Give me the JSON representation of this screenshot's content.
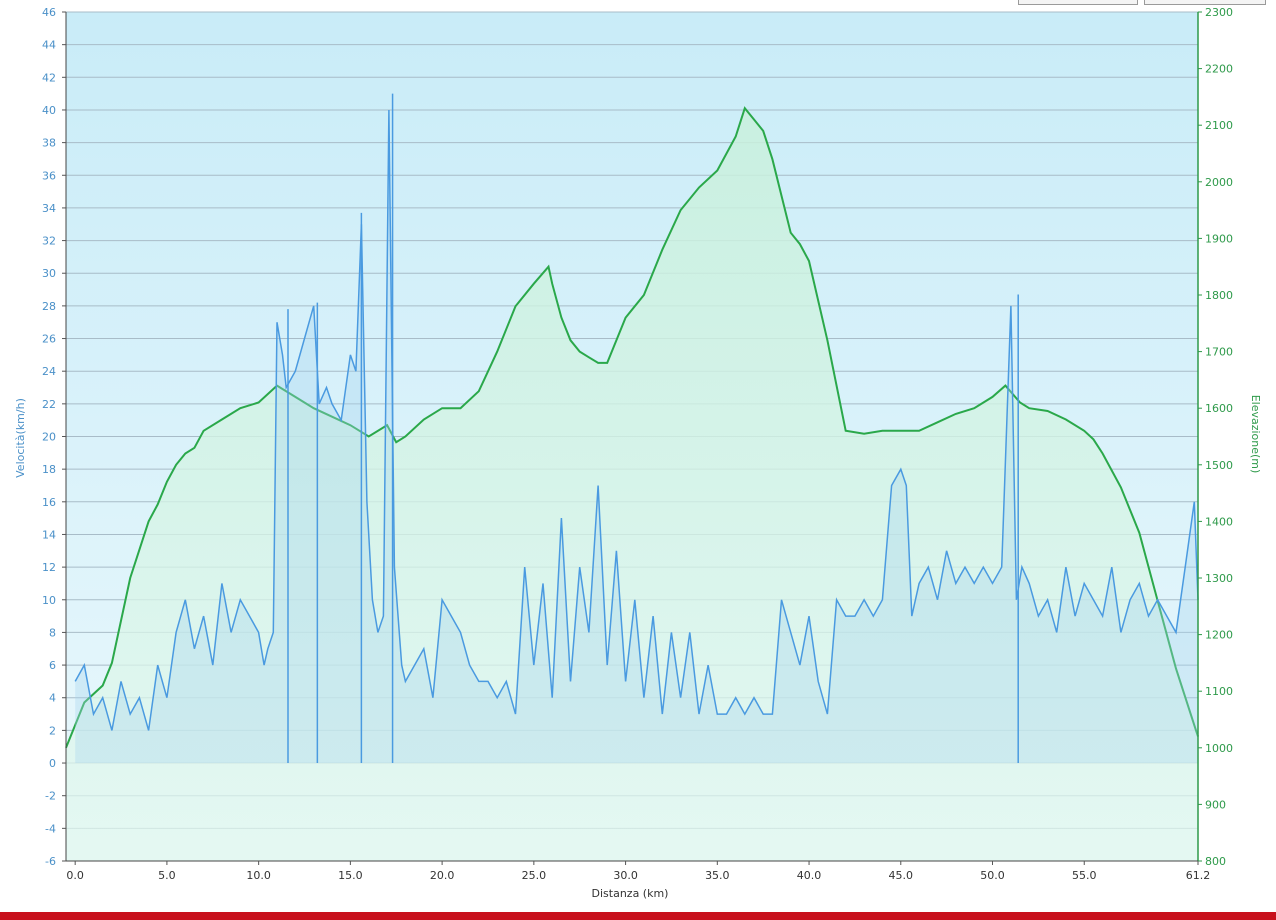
{
  "chart_data": {
    "type": "area",
    "xlabel": "Distanza  (km)",
    "ylabel_left": "Velocità(km/h)",
    "ylabel_right": "Elevazione(m)",
    "xlim": [
      -0.5,
      61.2
    ],
    "ylim_left": [
      -6,
      46
    ],
    "ylim_right": [
      800,
      2300
    ],
    "x_ticks": [
      "0.0",
      "5.0",
      "10.0",
      "15.0",
      "20.0",
      "25.0",
      "30.0",
      "35.0",
      "40.0",
      "45.0",
      "50.0",
      "55.0",
      "61.2"
    ],
    "x_tick_values": [
      0,
      5,
      10,
      15,
      20,
      25,
      30,
      35,
      40,
      45,
      50,
      55,
      61.2
    ],
    "y_left_ticks": [
      "46",
      "44",
      "42",
      "40",
      "38",
      "36",
      "34",
      "32",
      "30",
      "28",
      "26",
      "24",
      "22",
      "20",
      "18",
      "16",
      "14",
      "12",
      "10",
      "8",
      "6",
      "4",
      "2",
      "0",
      "-2",
      "-4",
      "-6"
    ],
    "y_right_ticks": [
      "2300",
      "2200",
      "2100",
      "2000",
      "1900",
      "1800",
      "1700",
      "1600",
      "1500",
      "1400",
      "1300",
      "1200",
      "1100",
      "1000",
      "900",
      "800"
    ],
    "grid": true,
    "series": [
      {
        "name": "Velocità(km/h)",
        "axis": "left",
        "color": "#4a9ae0",
        "x": [
          0,
          0.5,
          1,
          1.5,
          2,
          2.5,
          3,
          3.5,
          4,
          4.5,
          5,
          5.5,
          6,
          6.5,
          7,
          7.5,
          8,
          8.5,
          9,
          9.5,
          10,
          10.3,
          10.5,
          10.8,
          11,
          11.3,
          11.5,
          12,
          12.5,
          13,
          13.3,
          13.7,
          14,
          14.5,
          15,
          15.3,
          15.6,
          15.9,
          16.2,
          16.5,
          16.8,
          17.1,
          17.4,
          17.8,
          18,
          18.5,
          19,
          19.5,
          20,
          20.5,
          21,
          21.5,
          22,
          22.5,
          23,
          23.5,
          24,
          24.5,
          25,
          25.5,
          26,
          26.5,
          27,
          27.5,
          28,
          28.5,
          29,
          29.5,
          30,
          30.5,
          31,
          31.5,
          32,
          32.5,
          33,
          33.5,
          34,
          34.5,
          35,
          35.5,
          36,
          36.5,
          37,
          37.5,
          38,
          38.5,
          39,
          39.5,
          40,
          40.5,
          41,
          41.5,
          42,
          42.5,
          43,
          43.5,
          44,
          44.5,
          45,
          45.3,
          45.6,
          46,
          46.5,
          47,
          47.5,
          48,
          48.5,
          49,
          49.5,
          50,
          50.5,
          51,
          51.3,
          51.6,
          52,
          52.5,
          53,
          53.5,
          54,
          54.5,
          55,
          55.5,
          56,
          56.5,
          57,
          57.5,
          58,
          58.5,
          59,
          59.5,
          60,
          60.5,
          61,
          61.2
        ],
        "values": [
          5,
          6,
          3,
          4,
          2,
          5,
          3,
          4,
          2,
          6,
          4,
          8,
          10,
          7,
          9,
          6,
          11,
          8,
          10,
          9,
          8,
          6,
          7,
          8,
          27,
          25,
          23,
          24,
          26,
          28,
          22,
          23,
          22,
          21,
          25,
          24,
          33,
          16,
          10,
          8,
          9,
          40,
          12,
          6,
          5,
          6,
          7,
          4,
          10,
          9,
          8,
          6,
          5,
          5,
          4,
          5,
          3,
          12,
          6,
          11,
          4,
          15,
          5,
          12,
          8,
          17,
          6,
          13,
          5,
          10,
          4,
          9,
          3,
          8,
          4,
          8,
          3,
          6,
          3,
          3,
          4,
          3,
          4,
          3,
          3,
          10,
          8,
          6,
          9,
          5,
          3,
          10,
          9,
          9,
          10,
          9,
          10,
          17,
          18,
          17,
          9,
          11,
          12,
          10,
          13,
          11,
          12,
          11,
          12,
          11,
          12,
          28,
          10,
          12,
          11,
          9,
          10,
          8,
          12,
          9,
          11,
          10,
          9,
          12,
          8,
          10,
          11,
          9,
          10,
          9,
          8,
          12,
          16,
          10
        ],
        "max_peaks": [
          {
            "x": 17.3,
            "value": 41
          },
          {
            "x": 51.4,
            "value": 28.7
          },
          {
            "x": 15.6,
            "value": 33.7
          },
          {
            "x": 11.6,
            "value": 27.8
          },
          {
            "x": 13.2,
            "value": 28.2
          }
        ]
      },
      {
        "name": "Elevazione(m)",
        "axis": "right",
        "color": "#2aa84a",
        "x": [
          -0.5,
          0.5,
          1.5,
          2,
          3,
          4,
          4.5,
          5,
          5.5,
          6,
          6.5,
          7,
          8,
          9,
          10,
          11,
          12,
          13,
          14,
          15,
          16,
          17,
          17.5,
          18,
          19,
          20,
          21,
          22,
          23,
          24,
          25,
          25.8,
          26,
          26.5,
          27,
          27.5,
          28,
          28.5,
          29,
          30,
          31,
          32,
          33,
          34,
          35,
          36,
          36.5,
          37,
          37.5,
          38,
          39,
          39.5,
          40,
          41,
          42,
          43,
          44,
          45,
          46,
          47,
          48,
          49,
          50,
          50.7,
          51.5,
          52,
          53,
          54,
          55,
          55.5,
          56,
          57,
          58,
          59,
          60,
          61,
          61.2
        ],
        "values": [
          1000,
          1080,
          1110,
          1150,
          1300,
          1400,
          1430,
          1470,
          1500,
          1520,
          1530,
          1560,
          1580,
          1600,
          1610,
          1640,
          1620,
          1600,
          1585,
          1570,
          1550,
          1570,
          1540,
          1550,
          1580,
          1600,
          1600,
          1630,
          1700,
          1780,
          1820,
          1850,
          1820,
          1760,
          1720,
          1700,
          1690,
          1680,
          1680,
          1760,
          1800,
          1880,
          1950,
          1990,
          2020,
          2080,
          2130,
          2110,
          2090,
          2040,
          1910,
          1890,
          1860,
          1720,
          1560,
          1555,
          1560,
          1560,
          1560,
          1575,
          1590,
          1600,
          1620,
          1640,
          1610,
          1600,
          1595,
          1580,
          1560,
          1545,
          1520,
          1460,
          1380,
          1260,
          1140,
          1040,
          1020
        ]
      }
    ]
  }
}
